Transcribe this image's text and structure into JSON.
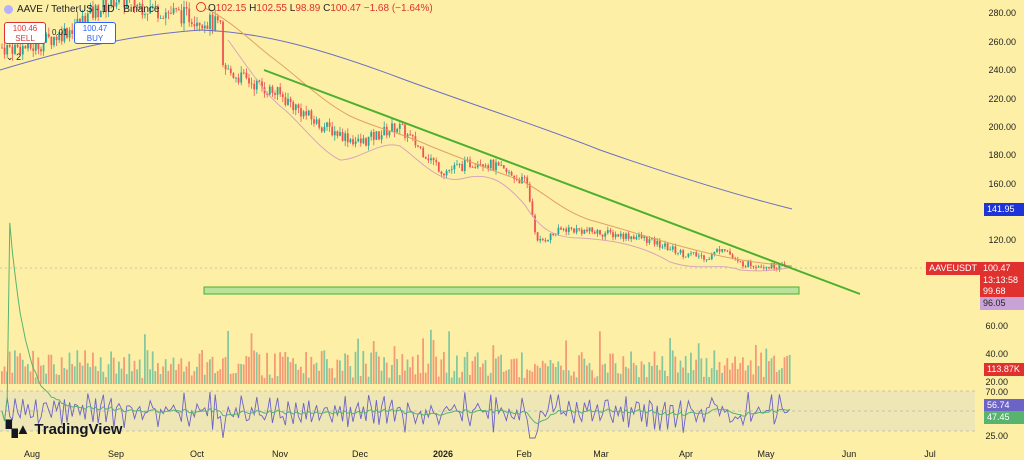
{
  "header": {
    "symbol_title": "AAVE / TetherUS · 1D · Binance",
    "open_label": "O",
    "open": "102.15",
    "high_label": "H",
    "high": "102.55",
    "low_label": "L",
    "low": "98.89",
    "close_label": "C",
    "close": "100.47",
    "change": "−1.68 (−1.64%)"
  },
  "trade": {
    "sell_price": "100.46",
    "sell_label": "SELL",
    "buy_price": "100.47",
    "buy_label": "BUY",
    "spread": "0.01",
    "indicators_toggle": "2"
  },
  "price_tags": {
    "symbol": "AAVEUSDT",
    "last_price": "100.47",
    "countdown": "13:13:58",
    "ma_a": "99.68",
    "ma_b": "96.05",
    "ma_long": "141.95",
    "volume": "113.87K",
    "rsi": "56.74",
    "rsi_ma": "47.45"
  },
  "colors": {
    "background": "#fdf0a6",
    "up": "#26a69a",
    "down": "#ef5350",
    "trendline": "#4caf2f",
    "support_zone": "#b8e39a",
    "ma_long": "#6f6fc0",
    "ma_mid": "#e2a165",
    "ma_short": "#d8a6b8",
    "rsi": "#6c63c7",
    "rsi_ma": "#58b36e",
    "symbol_tag": "#e0312f",
    "ma_long_tag": "#1e33d8",
    "ma_b_tag": "#c9a3d8"
  },
  "branding": "TradingView",
  "chart_data": {
    "type": "line",
    "title": "AAVE / TetherUS · 1D · Binance",
    "x_ticks": [
      "Aug",
      "Sep",
      "Oct",
      "Nov",
      "Dec",
      "2026",
      "Feb",
      "Mar",
      "Apr",
      "May",
      "Jun",
      "Jul"
    ],
    "y_ticks": [
      "280.00",
      "260.00",
      "240.00",
      "220.00",
      "200.00",
      "180.00",
      "160.00",
      "120.00"
    ],
    "volume_ticks": [
      "60.00",
      "40.00",
      "20.00"
    ],
    "rsi_ticks": [
      "70.00",
      "25.00"
    ],
    "grid": false,
    "price_series": [
      {
        "name": "AAVEUSDT",
        "x": [
          "2025-08-01",
          "2025-08-15",
          "2025-09-01",
          "2025-09-15",
          "2025-10-01",
          "2025-10-10",
          "2025-10-11",
          "2025-10-20",
          "2025-11-01",
          "2025-11-15",
          "2025-12-01",
          "2025-12-15",
          "2026-01-01",
          "2026-01-15",
          "2026-02-01",
          "2026-02-05",
          "2026-02-15",
          "2026-03-01",
          "2026-03-15",
          "2026-04-01",
          "2026-04-10",
          "2026-04-15",
          "2026-04-20",
          "2026-05-01",
          "2026-05-11"
        ],
        "y": [
          255,
          268,
          290,
          282,
          276,
          270,
          240,
          232,
          222,
          202,
          188,
          200,
          168,
          176,
          160,
          118,
          128,
          125,
          122,
          110,
          108,
          116,
          104,
          102,
          100.47
        ]
      },
      {
        "name": "MA long",
        "x": [
          "2025-08-01",
          "2025-09-01",
          "2025-10-01",
          "2025-11-01",
          "2025-12-01",
          "2026-01-01",
          "2026-02-01",
          "2026-03-01",
          "2026-04-01",
          "2026-05-11"
        ],
        "y": [
          244,
          262,
          268,
          258,
          240,
          220,
          200,
          178,
          160,
          141.95
        ]
      },
      {
        "name": "Trendline",
        "x": [
          "2025-10-25",
          "2026-05-25"
        ],
        "y": [
          238,
          98
        ]
      }
    ],
    "support_zone": {
      "y_low": 96.05,
      "y_high": 99.68,
      "x_start": "2025-10-10",
      "x_end": "2026-05-12"
    },
    "last": {
      "open": 102.15,
      "high": 102.55,
      "low": 98.89,
      "close": 100.47,
      "change": -1.68,
      "change_pct": -1.64
    },
    "rsi": 56.74,
    "rsi_ma": 47.45,
    "volume_last_k": 113.87
  }
}
